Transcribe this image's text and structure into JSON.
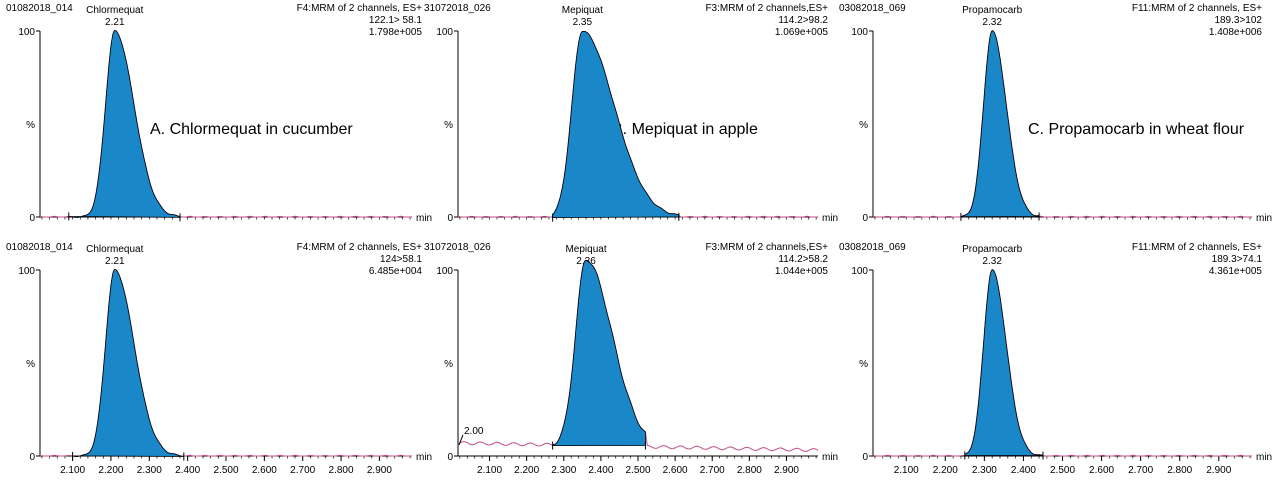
{
  "chart_data": [
    {
      "type": "area",
      "sample": "01082018_014",
      "compound": "Chlormequat",
      "rt": "2.21",
      "function": "F4:MRM of 2 channels, ES+",
      "transition": "122.1> 58.1",
      "intensity": "1.798e+005",
      "annotation": "A. Chlormequat in cucumber",
      "xlim": [
        2.015,
        2.985
      ],
      "ylim": [
        0,
        100
      ],
      "y_ticks": [
        "100",
        "%",
        "0"
      ],
      "x_unit": "min",
      "x_tick_labels": [],
      "baseline_marks": [
        2.09,
        2.38
      ],
      "peak": {
        "apex": 2.21,
        "height": 100,
        "sigma_left": 0.024,
        "sigma_right": 0.05
      },
      "color": "#1a87c9"
    },
    {
      "type": "area",
      "sample": "31072018_026",
      "compound": "Mepiquat",
      "rt": "2.35",
      "function": "F3:MRM of 2 channels,ES+",
      "transition": "114.2>98.2",
      "intensity": "1.069e+005",
      "annotation": "B. Mepiquat in apple",
      "xlim": [
        2.015,
        2.985
      ],
      "ylim": [
        0,
        100
      ],
      "y_ticks": [
        "100",
        "%",
        "0"
      ],
      "x_unit": "min",
      "x_tick_labels": [],
      "baseline_marks": [
        2.27,
        2.61
      ],
      "peak": {
        "apex": 2.35,
        "height": 100,
        "sigma_left": 0.028,
        "sigma_right": 0.085
      },
      "color": "#1a87c9"
    },
    {
      "type": "area",
      "sample": "03082018_069",
      "compound": "Propamocarb",
      "rt": "2.32",
      "function": "F11:MRM of 2 channels, ES+",
      "transition": "189.3>102",
      "intensity": "1.408e+006",
      "annotation": "C. Propamocarb in wheat flour",
      "xlim": [
        2.015,
        2.985
      ],
      "ylim": [
        0,
        100
      ],
      "y_ticks": [
        "100",
        "%",
        "0"
      ],
      "x_unit": "min",
      "x_tick_labels": [],
      "baseline_marks": [
        2.24,
        2.44
      ],
      "peak": {
        "apex": 2.32,
        "height": 100,
        "sigma_left": 0.022,
        "sigma_right": 0.036
      },
      "color": "#1a87c9"
    },
    {
      "type": "area",
      "sample": "01082018_014",
      "compound": "Chlormequat",
      "rt": "2.21",
      "function": "F4:MRM of 2 channels, ES+",
      "transition": "124>58.1",
      "intensity": "6.485e+004",
      "annotation": "",
      "xlim": [
        2.015,
        2.985
      ],
      "ylim": [
        0,
        100
      ],
      "y_ticks": [
        "100",
        "%",
        "0"
      ],
      "x_unit": "min",
      "x_tick_labels": [
        "2.100",
        "2.200",
        "2.300",
        "2.400",
        "2.500",
        "2.600",
        "2.700",
        "2.800",
        "2.900"
      ],
      "baseline_marks": [
        2.1,
        2.39
      ],
      "peak": {
        "apex": 2.21,
        "height": 100,
        "sigma_left": 0.024,
        "sigma_right": 0.05
      },
      "color": "#1a87c9"
    },
    {
      "type": "area",
      "sample": "31072018_026",
      "compound": "Mepiquat",
      "rt": "2.36",
      "function": "F3:MRM of 2 channels,ES+",
      "transition": "114.2>58.2",
      "intensity": "1.044e+005",
      "annotation": "",
      "xlim": [
        2.015,
        2.985
      ],
      "ylim": [
        0,
        100
      ],
      "y_ticks": [
        "100",
        "%",
        "0"
      ],
      "x_unit": "min",
      "x_tick_labels": [
        "2.100",
        "2.200",
        "2.300",
        "2.400",
        "2.500",
        "2.600",
        "2.700",
        "2.800",
        "2.900"
      ],
      "baseline_marks": [
        2.27,
        2.52
      ],
      "left_marker": "2.00",
      "baseline_level": 7,
      "peak": {
        "apex": 2.36,
        "height": 100,
        "sigma_left": 0.028,
        "sigma_right": 0.07
      },
      "color": "#1a87c9"
    },
    {
      "type": "area",
      "sample": "03082018_069",
      "compound": "Propamocarb",
      "rt": "2.32",
      "function": "F11:MRM of 2 channels, ES+",
      "transition": "189.3>74.1",
      "intensity": "4.361e+005",
      "annotation": "",
      "xlim": [
        2.015,
        2.985
      ],
      "ylim": [
        0,
        100
      ],
      "y_ticks": [
        "100",
        "%",
        "0"
      ],
      "x_unit": "min",
      "x_tick_labels": [
        "2.100",
        "2.200",
        "2.300",
        "2.400",
        "2.500",
        "2.600",
        "2.700",
        "2.800",
        "2.900"
      ],
      "baseline_marks": [
        2.25,
        2.45
      ],
      "peak": {
        "apex": 2.32,
        "height": 100,
        "sigma_left": 0.022,
        "sigma_right": 0.036
      },
      "color": "#1a87c9"
    }
  ]
}
